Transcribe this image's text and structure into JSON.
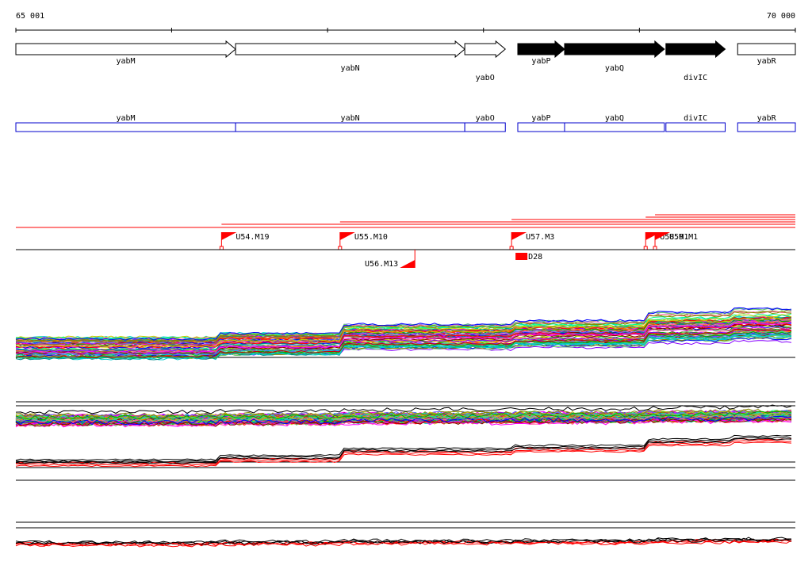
{
  "chart_data": {
    "type": "genome-browser",
    "coordinates": {
      "start": 65001,
      "end": 70000,
      "start_label": "65 001",
      "end_label": "70 000"
    },
    "ruler_ticks": [
      66000,
      67000,
      68000,
      69000
    ],
    "genes": [
      {
        "name": "yabM",
        "start": 65001,
        "end": 66410,
        "strand": "+",
        "highlighted": false,
        "label_row": 0
      },
      {
        "name": "yabN",
        "start": 66410,
        "end": 67880,
        "strand": "+",
        "highlighted": false,
        "label_row": 1
      },
      {
        "name": "yabO",
        "start": 67880,
        "end": 68140,
        "strand": "+",
        "highlighted": false,
        "label_row": 2
      },
      {
        "name": "yabP",
        "start": 68220,
        "end": 68520,
        "strand": "+",
        "highlighted": true,
        "label_row": 0
      },
      {
        "name": "yabQ",
        "start": 68520,
        "end": 69160,
        "strand": "+",
        "highlighted": true,
        "label_row": 1
      },
      {
        "name": "divIC",
        "start": 69170,
        "end": 69550,
        "strand": "+",
        "highlighted": true,
        "label_row": 2
      },
      {
        "name": "yabR",
        "start": 69630,
        "end": 70000,
        "strand": "+",
        "highlighted": false,
        "label_row": 0
      }
    ],
    "transcript_units": [
      {
        "name": "yabM",
        "start": 65001,
        "end": 66410
      },
      {
        "name": "yabN",
        "start": 66410,
        "end": 67880
      },
      {
        "name": "yabO",
        "start": 67880,
        "end": 68140
      },
      {
        "name": "yabP",
        "start": 68220,
        "end": 68520
      },
      {
        "name": "yabQ",
        "start": 68520,
        "end": 69160
      },
      {
        "name": "divIC",
        "start": 69170,
        "end": 69550
      },
      {
        "name": "yabR",
        "start": 69630,
        "end": 70000
      }
    ],
    "promoters_upper": [
      {
        "name": "U54.M19",
        "pos": 66320,
        "strand": "+",
        "line_end": 70000
      },
      {
        "name": "U55.M10",
        "pos": 67080,
        "strand": "+",
        "line_end": 70000
      },
      {
        "name": "U57.M3",
        "pos": 68180,
        "strand": "+",
        "line_end": 70000
      },
      {
        "name": "U58.M1",
        "pos": 69040,
        "strand": "+",
        "line_end": 70000
      },
      {
        "name": "U59.M1",
        "pos": 69100,
        "strand": "+",
        "line_end": 70000
      }
    ],
    "promoters_lower": [
      {
        "name": "U56.M13",
        "pos": 67560,
        "strand": "-"
      }
    ],
    "terminators": [
      {
        "name": "D28",
        "pos": 68180,
        "end": 68280
      }
    ],
    "track_colors": {
      "accent": "#ff0000",
      "gene_outline": "#0000cc",
      "gene_fill": "#000000"
    }
  }
}
